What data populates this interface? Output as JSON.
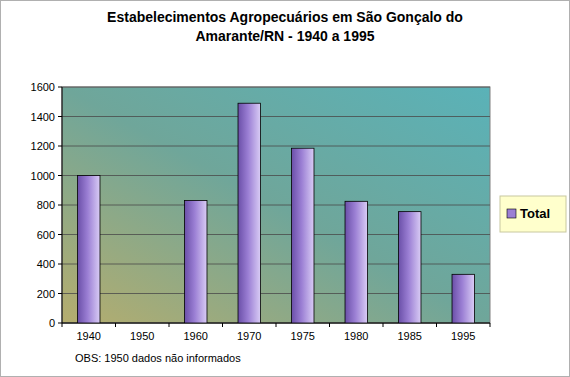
{
  "chart_data": {
    "type": "bar",
    "title": "Estabelecimentos Agropecuários em São Gonçalo do Amarante/RN - 1940 a 1995",
    "categories": [
      "1940",
      "1950",
      "1960",
      "1970",
      "1975",
      "1980",
      "1985",
      "1995"
    ],
    "series": [
      {
        "name": "Total",
        "color": "#9b7fd4",
        "values": [
          1000,
          null,
          830,
          1490,
          1185,
          825,
          755,
          330
        ]
      }
    ],
    "ylim": [
      0,
      1600
    ],
    "yticks": [
      0,
      200,
      400,
      600,
      800,
      1000,
      1200,
      1400,
      1600
    ],
    "grid": true,
    "legend": "right",
    "annotations": [
      "OBS: 1950 dados não informados"
    ]
  }
}
